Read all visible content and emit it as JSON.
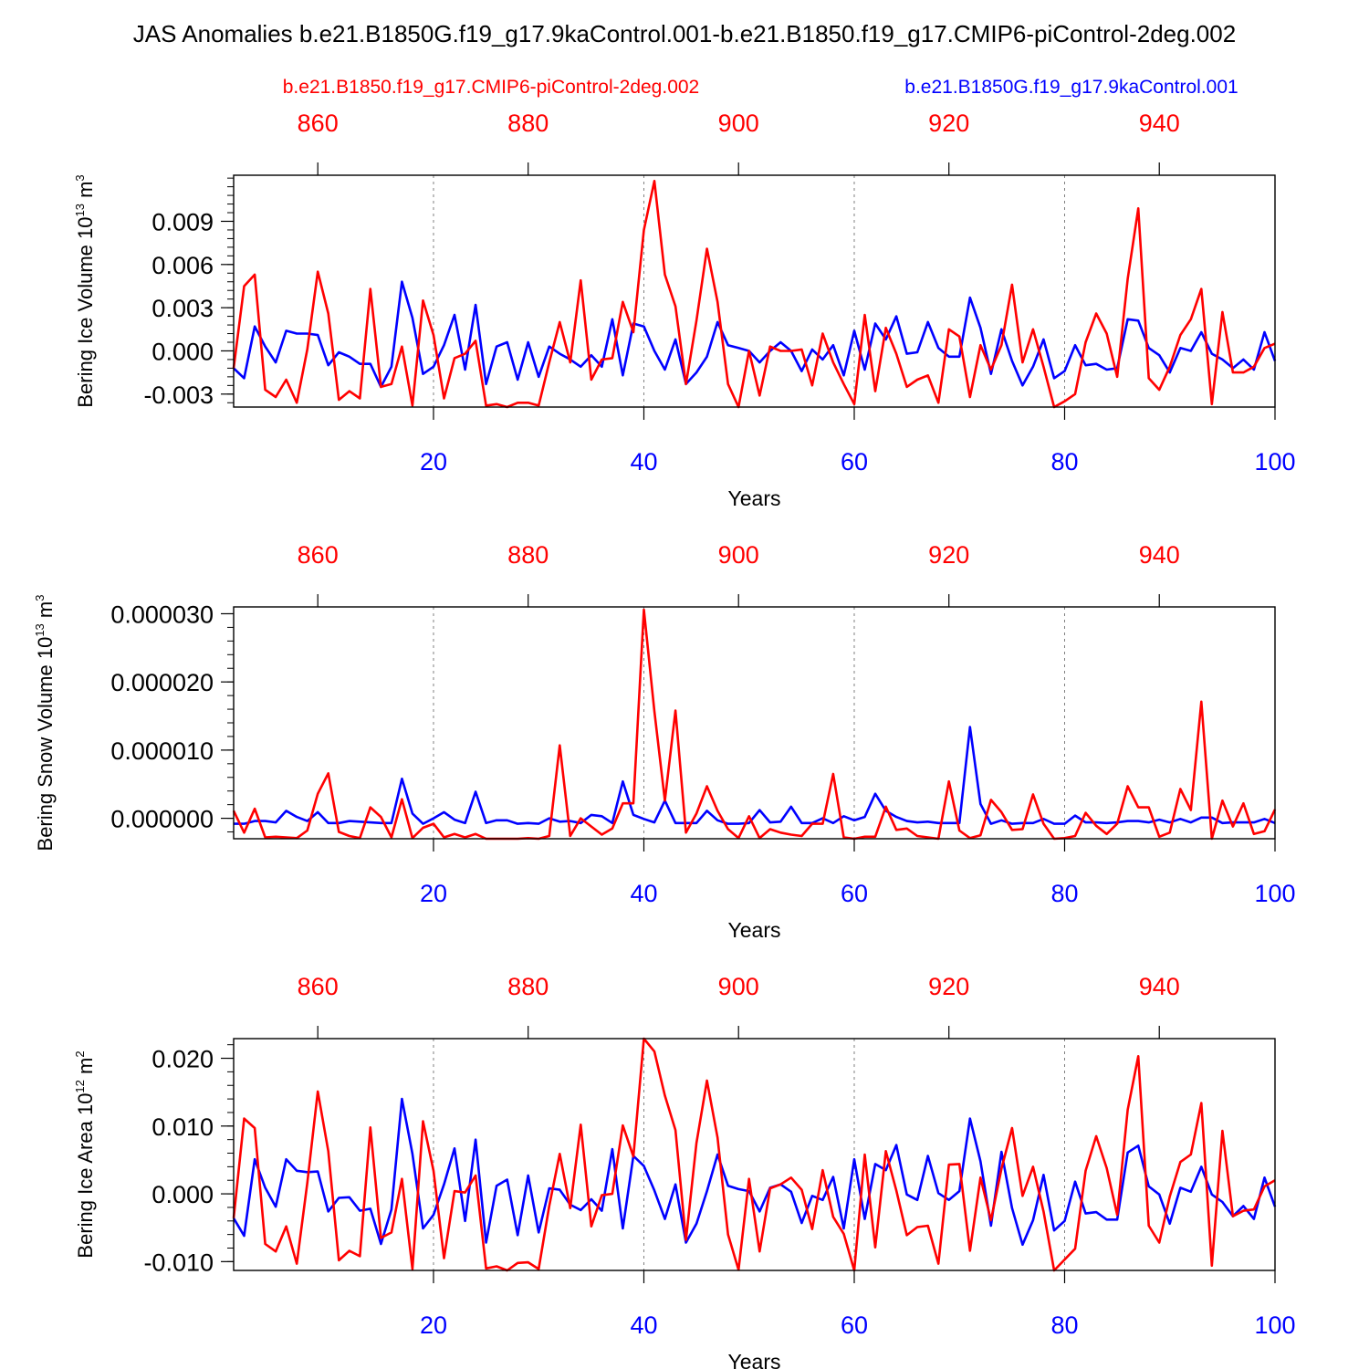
{
  "title": "JAS Anomalies b.e21.B1850G.f19_g17.9kaControl.001-b.e21.B1850.f19_g17.CMIP6-piControl-2deg.002",
  "colors": {
    "red": "#ff0000",
    "blue": "#0000ff",
    "black": "#000000",
    "grid": "#808080"
  },
  "legend": {
    "red_label": "b.e21.B1850.f19_g17.CMIP6-piControl-2deg.002",
    "blue_label": "b.e21.B1850G.f19_g17.9kaControl.001"
  },
  "chart_data": [
    {
      "type": "line",
      "ylabel": {
        "main": "Bering Ice Volume 10",
        "sup1": "13",
        "unit": " m",
        "sup2": "3"
      },
      "xlabel": "Years",
      "xlim": [
        1,
        100
      ],
      "ylim": [
        -0.0039,
        0.0122
      ],
      "yticks": [
        "-0.003",
        "0.000",
        "0.003",
        "0.006",
        "0.009"
      ],
      "ytick_values": [
        -0.003,
        0.0,
        0.003,
        0.006,
        0.009
      ],
      "bottom_ticks": [
        "20",
        "40",
        "60",
        "80",
        "100"
      ],
      "bottom_tick_values": [
        20,
        40,
        60,
        80,
        100
      ],
      "top_ticks": [
        "860",
        "880",
        "900",
        "920",
        "940"
      ],
      "top_tick_values": [
        860,
        880,
        900,
        920,
        940
      ],
      "top_axis_offset": 851,
      "grid_x": [
        20,
        40,
        60,
        80
      ],
      "series": [
        {
          "name": "b.e21.B1850G.f19_g17.9kaControl.001",
          "color": "#0000ff",
          "values": [
            -0.0012,
            -0.0019,
            0.0017,
            0.0003,
            -0.0008,
            0.0014,
            0.0012,
            0.0012,
            0.0011,
            -0.001,
            -0.0001,
            -0.0004,
            -0.0009,
            -0.0009,
            -0.0025,
            -0.0011,
            0.0048,
            0.0023,
            -0.0016,
            -0.0011,
            0.0004,
            0.0025,
            -0.0013,
            0.0032,
            -0.0023,
            0.0003,
            0.0006,
            -0.002,
            0.0006,
            -0.0018,
            0.0003,
            -0.0002,
            -0.0006,
            -0.0011,
            -0.0003,
            -0.0011,
            0.0022,
            -0.0017,
            0.0019,
            0.0017,
            0.0,
            -0.0013,
            0.0008,
            -0.0023,
            -0.0015,
            -0.0004,
            0.002,
            0.0004,
            0.0002,
            0.0,
            -0.0008,
            0.0,
            0.0006,
            0.0,
            -0.0014,
            0.0001,
            -0.0006,
            0.0004,
            -0.0017,
            0.0014,
            -0.0013,
            0.0019,
            0.0008,
            0.0024,
            -0.0002,
            -0.0001,
            0.002,
            0.0002,
            -0.0004,
            -0.0004,
            0.0037,
            0.0016,
            -0.0016,
            0.0015,
            -0.0007,
            -0.0024,
            -0.0011,
            0.0008,
            -0.0019,
            -0.0014,
            0.0004,
            -0.001,
            -0.0009,
            -0.0013,
            -0.0012,
            0.0022,
            0.0021,
            0.0002,
            -0.0003,
            -0.0015,
            0.0002,
            0.0,
            0.0013,
            -0.0002,
            -0.0006,
            -0.0012,
            -0.0006,
            -0.0013,
            0.0013,
            -0.0007
          ]
        },
        {
          "name": "b.e21.B1850.f19_g17.CMIP6-piControl-2deg.002",
          "color": "#ff0000",
          "values": [
            -0.0012,
            0.0045,
            0.0053,
            -0.0027,
            -0.0032,
            -0.002,
            -0.0036,
            0.0001,
            0.0055,
            0.0026,
            -0.0034,
            -0.0028,
            -0.0033,
            0.0043,
            -0.0025,
            -0.0023,
            0.0003,
            -0.0038,
            0.0035,
            0.0011,
            -0.0033,
            -0.0005,
            -0.0002,
            0.0007,
            -0.0038,
            -0.0037,
            -0.0039,
            -0.0036,
            -0.0036,
            -0.0038,
            -0.0008,
            0.002,
            -0.0008,
            0.0049,
            -0.002,
            -0.0006,
            -0.0005,
            0.0034,
            0.0013,
            0.0084,
            0.0118,
            0.0053,
            0.0031,
            -0.0023,
            0.0021,
            0.0071,
            0.0034,
            -0.0023,
            -0.0039,
            0.0,
            -0.0031,
            0.0003,
            0.0,
            0.0,
            0.0001,
            -0.0024,
            0.0012,
            -0.0008,
            -0.0023,
            -0.0037,
            0.0025,
            -0.0028,
            0.0016,
            -0.0002,
            -0.0025,
            -0.002,
            -0.0017,
            -0.0036,
            0.0015,
            0.001,
            -0.0032,
            0.0004,
            -0.0013,
            0.0004,
            0.0046,
            -0.0008,
            0.0015,
            -0.0011,
            -0.0039,
            -0.0035,
            -0.003,
            0.0006,
            0.0026,
            0.0012,
            -0.0018,
            0.005,
            0.0099,
            -0.0019,
            -0.0027,
            -0.0011,
            0.0011,
            0.0022,
            0.0043,
            -0.0037,
            0.0027,
            -0.0015,
            -0.0015,
            -0.0011,
            0.0002,
            0.0005
          ]
        }
      ]
    },
    {
      "type": "line",
      "ylabel": {
        "main": "Bering Snow Volume 10",
        "sup1": "13",
        "unit": " m",
        "sup2": "3"
      },
      "xlabel": "Years",
      "xlim": [
        1,
        100
      ],
      "ylim": [
        -3e-06,
        3.1e-05
      ],
      "yticks": [
        "0.000000",
        "0.000010",
        "0.000020",
        "0.000030"
      ],
      "ytick_values": [
        0.0,
        1e-05,
        2e-05,
        3e-05
      ],
      "bottom_ticks": [
        "20",
        "40",
        "60",
        "80",
        "100"
      ],
      "bottom_tick_values": [
        20,
        40,
        60,
        80,
        100
      ],
      "top_ticks": [
        "860",
        "880",
        "900",
        "920",
        "940"
      ],
      "top_tick_values": [
        860,
        880,
        900,
        920,
        940
      ],
      "top_axis_offset": 851,
      "grid_x": [
        20,
        40,
        60,
        80
      ],
      "series": [
        {
          "name": "b.e21.B1850G.f19_g17.9kaControl.001",
          "color": "#0000ff",
          "values": [
            -8e-07,
            -8e-07,
            -4e-07,
            -4e-07,
            -6e-07,
            1.1e-06,
            2e-07,
            -4e-07,
            9e-07,
            -7e-07,
            -7e-07,
            -4e-07,
            -5e-07,
            -6e-07,
            -7e-07,
            -7e-07,
            5.8e-06,
            7e-07,
            -8e-07,
            0.0,
            9e-07,
            -2e-07,
            -7e-07,
            3.9e-06,
            -7e-07,
            -3e-07,
            -3e-07,
            -8e-07,
            -7e-07,
            -8e-07,
            0.0,
            -5e-07,
            -4e-07,
            -7e-07,
            5e-07,
            3e-07,
            -7e-07,
            5.4e-06,
            5e-07,
            -1e-07,
            -6e-07,
            2.6e-06,
            -7e-07,
            -7e-07,
            -7e-07,
            1.1e-06,
            -3e-07,
            -8e-07,
            -8e-07,
            -7e-07,
            1.2e-06,
            -6e-07,
            -5e-07,
            1.7e-06,
            -7e-07,
            -7e-07,
            0.0,
            -7e-07,
            3e-07,
            -3e-07,
            2e-07,
            3.6e-06,
            1.1e-06,
            2e-07,
            -4e-07,
            -6e-07,
            -5e-07,
            -7e-07,
            -7e-07,
            -7e-07,
            1.34e-05,
            2.1e-06,
            -8e-07,
            -3e-07,
            -8e-07,
            -7e-07,
            -7e-07,
            -1e-07,
            -8e-07,
            -8e-07,
            4e-07,
            -6e-07,
            -6e-07,
            -7e-07,
            -6e-07,
            -4e-07,
            -4e-07,
            -6e-07,
            -2e-07,
            -6e-07,
            -1e-07,
            -6e-07,
            1e-07,
            1e-07,
            -7e-07,
            -6e-07,
            -6e-07,
            -6e-07,
            -1e-07,
            -7e-07
          ]
        },
        {
          "name": "b.e21.B1850.f19_g17.CMIP6-piControl-2deg.002",
          "color": "#ff0000",
          "values": [
            1.1e-06,
            -2.1e-06,
            1.4e-06,
            -2.8e-06,
            -2.7e-06,
            -2.8e-06,
            -2.9e-06,
            -1.8e-06,
            3.6e-06,
            6.6e-06,
            -2e-06,
            -2.6e-06,
            -2.9e-06,
            1.6e-06,
            2e-07,
            -2.8e-06,
            2.8e-06,
            -2.9e-06,
            -1.4e-06,
            -8e-07,
            -2.8e-06,
            -2.3e-06,
            -2.8e-06,
            -2.3e-06,
            -3e-06,
            -3e-06,
            -3e-06,
            -3e-06,
            -2.9e-06,
            -3e-06,
            -2.6e-06,
            1.07e-05,
            -2.6e-06,
            0.0,
            -1.2e-06,
            -2.4e-06,
            -1.5e-06,
            2.2e-06,
            2.2e-06,
            3.06e-05,
            1.57e-05,
            2.6e-06,
            1.58e-05,
            -2.1e-06,
            7e-07,
            4.7e-06,
            1.1e-06,
            -1.6e-06,
            -2.9e-06,
            3e-07,
            -2.9e-06,
            -1.6e-06,
            -2.1e-06,
            -2.4e-06,
            -2.6e-06,
            -8e-07,
            -8e-07,
            6.5e-06,
            -2.8e-06,
            -3e-06,
            -2.7e-06,
            -2.7e-06,
            1.7e-06,
            -1.7e-06,
            -1.5e-06,
            -2.6e-06,
            -2.8e-06,
            -3e-06,
            5.4e-06,
            -1.8e-06,
            -2.9e-06,
            -2.5e-06,
            2.7e-06,
            9e-07,
            -1.7e-06,
            -1.6e-06,
            3.5e-06,
            -8e-07,
            -3e-06,
            -2.9e-06,
            -2.6e-06,
            8e-07,
            -1.1e-06,
            -2.3e-06,
            -8e-07,
            4.7e-06,
            1.6e-06,
            1.6e-06,
            -2.7e-06,
            -2.1e-06,
            4.3e-06,
            1.2e-06,
            1.71e-05,
            -3e-06,
            2.6e-06,
            -1.2e-06,
            2.2e-06,
            -2.3e-06,
            -1.9e-06,
            1.3e-06
          ]
        }
      ]
    },
    {
      "type": "line",
      "ylabel": {
        "main": "Bering Ice Area 10",
        "sup1": "12",
        "unit": " m",
        "sup2": "2"
      },
      "xlabel": "Years",
      "xlim": [
        1,
        100
      ],
      "ylim": [
        -0.0113,
        0.0229
      ],
      "yticks": [
        "-0.010",
        "0.000",
        "0.010",
        "0.020"
      ],
      "ytick_values": [
        -0.01,
        0.0,
        0.01,
        0.02
      ],
      "bottom_ticks": [
        "20",
        "40",
        "60",
        "80",
        "100"
      ],
      "bottom_tick_values": [
        20,
        40,
        60,
        80,
        100
      ],
      "top_ticks": [
        "860",
        "880",
        "900",
        "920",
        "940"
      ],
      "top_tick_values": [
        860,
        880,
        900,
        920,
        940
      ],
      "top_axis_offset": 851,
      "grid_x": [
        20,
        40,
        60,
        80
      ],
      "series": [
        {
          "name": "b.e21.B1850G.f19_g17.9kaControl.001",
          "color": "#0000ff",
          "values": [
            -0.0036,
            -0.0062,
            0.0051,
            0.0009,
            -0.0019,
            0.0051,
            0.0034,
            0.0032,
            0.0033,
            -0.0026,
            -0.0006,
            -0.0005,
            -0.0025,
            -0.0022,
            -0.0074,
            -0.0023,
            0.014,
            0.0059,
            -0.0051,
            -0.0031,
            0.0014,
            0.0067,
            -0.004,
            0.008,
            -0.0072,
            0.0012,
            0.0021,
            -0.0061,
            0.0027,
            -0.0057,
            0.0008,
            0.0006,
            -0.0016,
            -0.0024,
            -0.0008,
            -0.0025,
            0.0066,
            -0.0051,
            0.0056,
            0.0041,
            0.0005,
            -0.0037,
            0.0014,
            -0.0072,
            -0.0044,
            0.0004,
            0.0058,
            0.0012,
            0.0007,
            0.0004,
            -0.0026,
            0.0009,
            0.0014,
            0.0003,
            -0.0043,
            -0.0003,
            -0.0009,
            0.0025,
            -0.0051,
            0.0051,
            -0.0037,
            0.0044,
            0.0035,
            0.0072,
            -0.0001,
            -0.0009,
            0.0056,
            0.0001,
            -0.0009,
            0.0004,
            0.0111,
            0.0048,
            -0.0047,
            0.0062,
            -0.0021,
            -0.0075,
            -0.0039,
            0.0028,
            -0.0054,
            -0.004,
            0.0018,
            -0.0029,
            -0.0027,
            -0.0038,
            -0.0038,
            0.0061,
            0.0071,
            0.0011,
            -0.0001,
            -0.0044,
            0.0009,
            0.0003,
            0.004,
            -0.0001,
            -0.0012,
            -0.0033,
            -0.0018,
            -0.0037,
            0.0024,
            -0.0019
          ]
        },
        {
          "name": "b.e21.B1850.f19_g17.CMIP6-piControl-2deg.002",
          "color": "#ff0000",
          "values": [
            -0.0036,
            0.0111,
            0.0097,
            -0.0074,
            -0.0085,
            -0.0048,
            -0.0103,
            0.0016,
            0.0151,
            0.0063,
            -0.0098,
            -0.0084,
            -0.0092,
            0.0098,
            -0.0065,
            -0.0057,
            0.0022,
            -0.0111,
            0.0107,
            0.0034,
            -0.0095,
            0.0004,
            0.0002,
            0.0027,
            -0.011,
            -0.0107,
            -0.0113,
            -0.0102,
            -0.0101,
            -0.0111,
            -0.0018,
            0.0059,
            -0.0021,
            0.0102,
            -0.0048,
            -0.0002,
            0.0,
            0.0101,
            0.0055,
            0.0229,
            0.021,
            0.0145,
            0.0094,
            -0.0068,
            0.0075,
            0.0167,
            0.0083,
            -0.006,
            -0.0112,
            0.0022,
            -0.0085,
            0.0008,
            0.0014,
            0.0024,
            0.0006,
            -0.0052,
            0.0035,
            -0.0034,
            -0.0059,
            -0.0113,
            0.0058,
            -0.0079,
            0.0063,
            0.0005,
            -0.0061,
            -0.0049,
            -0.0047,
            -0.0103,
            0.0043,
            0.0044,
            -0.0084,
            0.0024,
            -0.0039,
            0.0037,
            0.0097,
            -0.0003,
            0.004,
            -0.0026,
            -0.0113,
            -0.0097,
            -0.0081,
            0.0034,
            0.0085,
            0.0038,
            -0.0031,
            0.0124,
            0.0203,
            -0.0047,
            -0.0072,
            -0.0004,
            0.0047,
            0.0058,
            0.0134,
            -0.0106,
            0.0093,
            -0.0033,
            -0.0025,
            -0.0023,
            0.0011,
            0.002
          ]
        }
      ]
    }
  ]
}
